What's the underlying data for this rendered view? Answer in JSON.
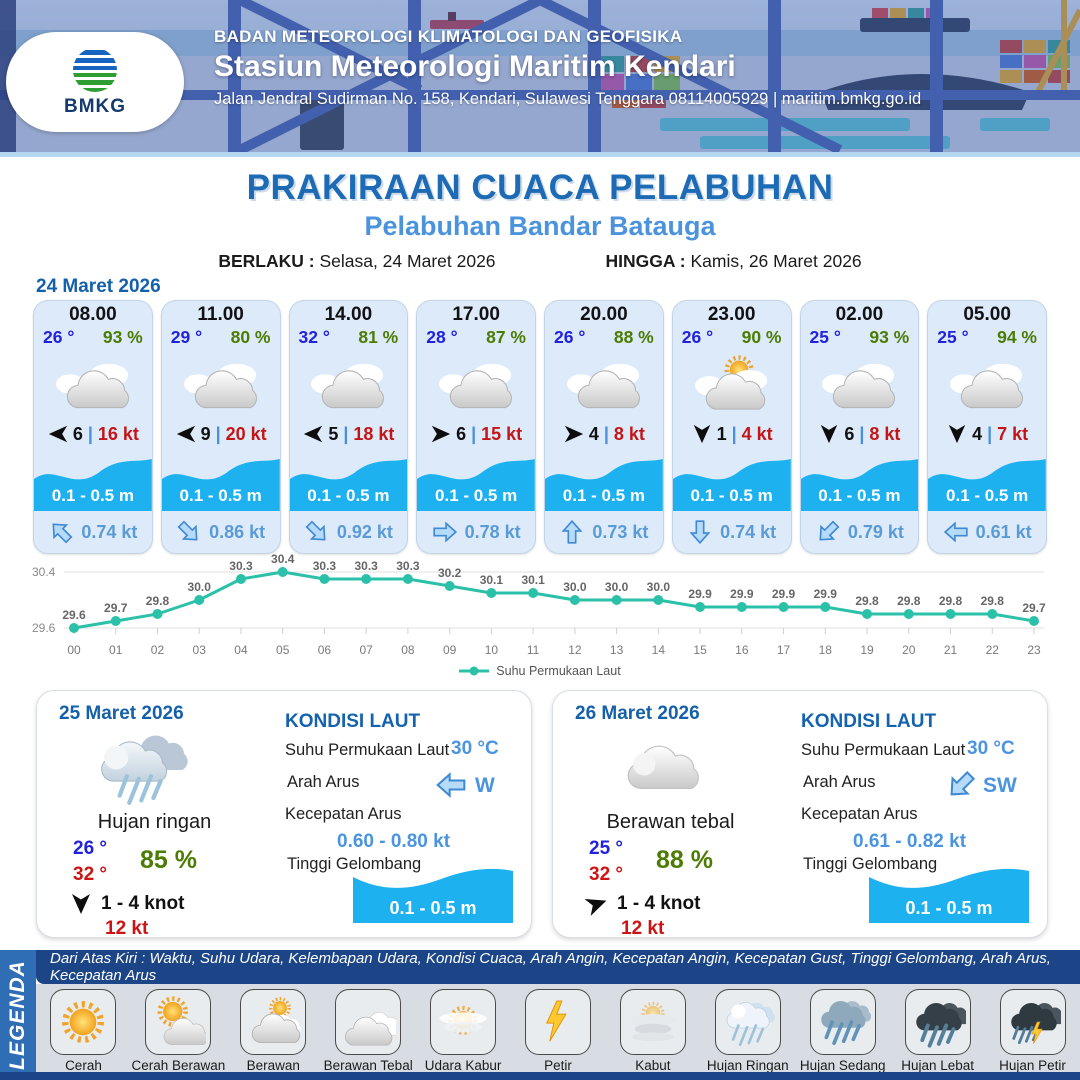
{
  "header": {
    "logo": "BMKG",
    "org": "BADAN METEOROLOGI KLIMATOLOGI DAN GEOFISIKA",
    "station": "Stasiun Meteorologi Maritim Kendari",
    "address": "Jalan Jendral Sudirman No. 158, Kendari, Sulawesi Tenggara  08114005929 | maritim.bmkg.go.id"
  },
  "title": {
    "main": "PRAKIRAAN CUACA PELABUHAN",
    "sub": "Pelabuhan Bandar Batauga",
    "berlaku_label": "BERLAKU :",
    "berlaku": "Selasa, 24 Maret 2026",
    "hingga_label": "HINGGA :",
    "hingga": "Kamis, 26 Maret 2026"
  },
  "forecast": {
    "date": "24 Maret 2026",
    "wind_sep": "|",
    "cards": [
      {
        "time": "08.00",
        "temp": "26 °",
        "humidity": "93 %",
        "icon": "berawan",
        "wind_speed": "6",
        "gust": "16 kt",
        "wind_deg": 180,
        "wave": "0.1 - 0.5 m",
        "current": "0.74 kt",
        "current_deg": 45
      },
      {
        "time": "11.00",
        "temp": "29 °",
        "humidity": "80 %",
        "icon": "berawan",
        "wind_speed": "9",
        "gust": "20 kt",
        "wind_deg": 180,
        "wave": "0.1 - 0.5 m",
        "current": "0.86 kt",
        "current_deg": 225
      },
      {
        "time": "14.00",
        "temp": "32 °",
        "humidity": "81 %",
        "icon": "berawan",
        "wind_speed": "5",
        "gust": "18 kt",
        "wind_deg": 180,
        "wave": "0.1 - 0.5 m",
        "current": "0.92 kt",
        "current_deg": 225
      },
      {
        "time": "17.00",
        "temp": "28 °",
        "humidity": "87 %",
        "icon": "berawan",
        "wind_speed": "6",
        "gust": "15 kt",
        "wind_deg": 0,
        "wave": "0.1 - 0.5 m",
        "current": "0.78 kt",
        "current_deg": 180
      },
      {
        "time": "20.00",
        "temp": "26 °",
        "humidity": "88 %",
        "icon": "berawan",
        "wind_speed": "4",
        "gust": "8 kt",
        "wind_deg": 0,
        "wave": "0.1 - 0.5 m",
        "current": "0.73 kt",
        "current_deg": 90
      },
      {
        "time": "23.00",
        "temp": "26 °",
        "humidity": "90 %",
        "icon": "cerah-berawan",
        "wind_speed": "1",
        "gust": "4 kt",
        "wind_deg": 90,
        "wave": "0.1 - 0.5 m",
        "current": "0.74 kt",
        "current_deg": 270
      },
      {
        "time": "02.00",
        "temp": "25 °",
        "humidity": "93 %",
        "icon": "berawan",
        "wind_speed": "6",
        "gust": "8 kt",
        "wind_deg": 90,
        "wave": "0.1 - 0.5 m",
        "current": "0.79 kt",
        "current_deg": 315
      },
      {
        "time": "05.00",
        "temp": "25 °",
        "humidity": "94 %",
        "icon": "berawan",
        "wind_speed": "4",
        "gust": "7 kt",
        "wind_deg": 90,
        "wave": "0.1 - 0.5 m",
        "current": "0.61 kt",
        "current_deg": 0
      }
    ]
  },
  "chart_data": {
    "type": "line",
    "x": [
      "00",
      "01",
      "02",
      "03",
      "04",
      "05",
      "06",
      "07",
      "08",
      "09",
      "10",
      "11",
      "12",
      "13",
      "14",
      "15",
      "16",
      "17",
      "18",
      "19",
      "20",
      "21",
      "22",
      "23"
    ],
    "series": [
      {
        "name": "Suhu Permukaan Laut",
        "values": [
          29.6,
          29.7,
          29.8,
          30.0,
          30.3,
          30.4,
          30.3,
          30.3,
          30.3,
          30.2,
          30.1,
          30.1,
          30.0,
          30.0,
          30.0,
          29.9,
          29.9,
          29.9,
          29.9,
          29.8,
          29.8,
          29.8,
          29.8,
          29.7
        ]
      }
    ],
    "ylim": [
      29.6,
      30.4
    ],
    "color": "#2bc0a8",
    "legend": "Suhu Permukaan Laut",
    "legend_position": "bottom",
    "grid": "horizontal",
    "xlabel": "",
    "ylabel": ""
  },
  "day2": {
    "date": "25 Maret 2026",
    "condition": "Hujan ringan",
    "temp_min": "26 °",
    "temp_max": "32 °",
    "humidity": "85 %",
    "wind_deg": 90,
    "wind_range": "1 - 4 knot",
    "gust": "12 kt",
    "sea": {
      "title": "KONDISI LAUT",
      "sst_label": "Suhu Permukaan Laut",
      "sst_value": "30 °C",
      "dir_label": "Arah Arus",
      "dir_value": "W",
      "dir_deg": 0,
      "speed_label": "Kecepatan Arus",
      "speed_value": "0.60 - 0.80 kt",
      "wave_label": "Tinggi Gelombang",
      "wave_value": "0.1 - 0.5 m"
    }
  },
  "day3": {
    "date": "26 Maret 2026",
    "condition": "Berawan tebal",
    "temp_min": "25 °",
    "temp_max": "32 °",
    "humidity": "88 %",
    "wind_deg": -20,
    "wind_range": "1 - 4 knot",
    "gust": "12 kt",
    "sea": {
      "title": "KONDISI LAUT",
      "sst_label": "Suhu Permukaan Laut",
      "sst_value": "30 °C",
      "dir_label": "Arah Arus",
      "dir_value": "SW",
      "dir_deg": 315,
      "speed_label": "Kecepatan Arus",
      "speed_value": "0.61 - 0.82 kt",
      "wave_label": "Tinggi Gelombang",
      "wave_value": "0.1 - 0.5 m"
    }
  },
  "legend": {
    "sidebar": "LEGENDA",
    "note": "Dari Atas Kiri : Waktu, Suhu Udara, Kelembapan Udara, Kondisi Cuaca, Arah Angin, Kecepatan Angin, Kecepatan Gust, Tinggi Gelombang, Arah Arus, Kecepatan Arus",
    "items": [
      {
        "label": "Cerah",
        "icon": "cerah"
      },
      {
        "label": "Cerah Berawan",
        "icon": "cerah-berawan"
      },
      {
        "label": "Berawan",
        "icon": "berawan"
      },
      {
        "label": "Berawan Tebal",
        "icon": "berawan-tebal"
      },
      {
        "label": "Udara Kabur",
        "icon": "udara-kabur"
      },
      {
        "label": "Petir",
        "icon": "petir"
      },
      {
        "label": "Kabut",
        "icon": "kabut"
      },
      {
        "label": "Hujan Ringan",
        "icon": "hujan-ringan"
      },
      {
        "label": "Hujan Sedang",
        "icon": "hujan-sedang"
      },
      {
        "label": "Hujan Lebat",
        "icon": "hujan-lebat"
      },
      {
        "label": "Hujan Petir",
        "icon": "hujan-petir"
      }
    ]
  }
}
